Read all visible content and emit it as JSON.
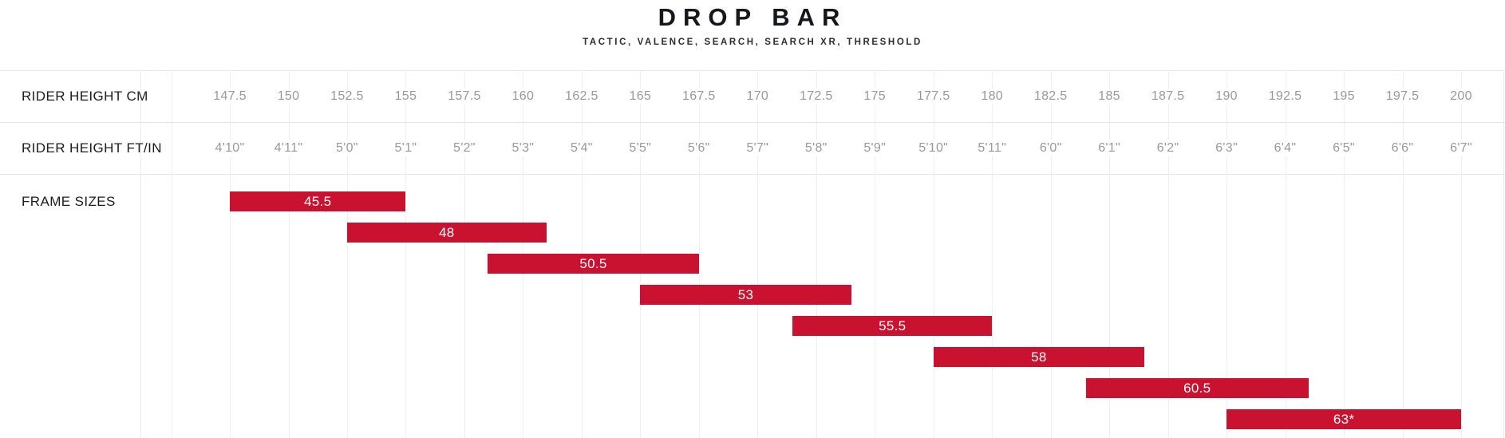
{
  "header": {
    "title": "DROP BAR",
    "subtitle": "TACTIC, VALENCE, SEARCH, SEARCH XR, THRESHOLD"
  },
  "row_labels": {
    "cm": "RIDER HEIGHT CM",
    "ftin": "RIDER HEIGHT FT/IN",
    "frame": "FRAME SIZES"
  },
  "chart_data": {
    "type": "bar",
    "subtype": "horizontal-range-size-chart",
    "title": "DROP BAR",
    "subtitle": "TACTIC, VALENCE, SEARCH, SEARCH XR, THRESHOLD",
    "x_axis": {
      "label_cm": "RIDER HEIGHT CM",
      "label_ftin": "RIDER HEIGHT FT/IN",
      "range_cm": [
        145,
        202.5
      ],
      "tick_step_cm": 2.5,
      "grid": true,
      "ticks_cm": [
        147.5,
        150,
        152.5,
        155,
        157.5,
        160,
        162.5,
        165,
        167.5,
        170,
        172.5,
        175,
        177.5,
        180,
        182.5,
        185,
        187.5,
        190,
        192.5,
        195,
        197.5,
        200
      ],
      "ticks_ftin": [
        "4'10\"",
        "4'11\"",
        "5'0\"",
        "5'1\"",
        "5'2\"",
        "5'3\"",
        "5'4\"",
        "5'5\"",
        "5'6\"",
        "5'7\"",
        "5'8\"",
        "5'9\"",
        "5'10\"",
        "5'11\"",
        "6'0\"",
        "6'1\"",
        "6'2\"",
        "6'3\"",
        "6'4\"",
        "6'5\"",
        "6'6\"",
        "6'7\""
      ]
    },
    "y_axis": {
      "label": "FRAME SIZES"
    },
    "series": [
      {
        "size": "45.5",
        "min_cm": 147.5,
        "max_cm": 155
      },
      {
        "size": "48",
        "min_cm": 152.5,
        "max_cm": 161
      },
      {
        "size": "50.5",
        "min_cm": 158.5,
        "max_cm": 167.5
      },
      {
        "size": "53",
        "min_cm": 165,
        "max_cm": 174
      },
      {
        "size": "55.5",
        "min_cm": 171.5,
        "max_cm": 180
      },
      {
        "size": "58",
        "min_cm": 177.5,
        "max_cm": 186.5
      },
      {
        "size": "60.5",
        "min_cm": 184,
        "max_cm": 193.5
      },
      {
        "size": "63*",
        "min_cm": 190,
        "max_cm": 200
      }
    ],
    "colors": {
      "bar": "#c8122f",
      "bar_label": "#ffffff",
      "tick_label": "#98999c",
      "row_label": "#1c1c1c",
      "gridline": "#efefef",
      "row_border": "#e7e7e7"
    },
    "legend": "none"
  }
}
